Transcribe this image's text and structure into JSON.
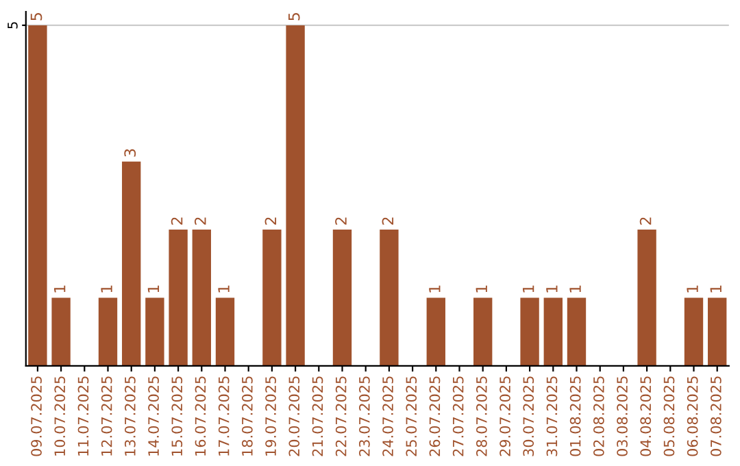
{
  "chart_data": {
    "type": "bar",
    "categories": [
      "09.07.2025",
      "10.07.2025",
      "11.07.2025",
      "12.07.2025",
      "13.07.2025",
      "14.07.2025",
      "15.07.2025",
      "16.07.2025",
      "17.07.2025",
      "18.07.2025",
      "19.07.2025",
      "20.07.2025",
      "21.07.2025",
      "22.07.2025",
      "23.07.2025",
      "24.07.2025",
      "25.07.2025",
      "26.07.2025",
      "27.07.2025",
      "28.07.2025",
      "29.07.2025",
      "30.07.2025",
      "31.07.2025",
      "01.08.2025",
      "02.08.2025",
      "03.08.2025",
      "04.08.2025",
      "05.08.2025",
      "06.08.2025",
      "07.08.2025"
    ],
    "values": [
      5,
      1,
      0,
      1,
      3,
      1,
      2,
      2,
      1,
      0,
      2,
      5,
      0,
      2,
      0,
      2,
      0,
      1,
      0,
      1,
      0,
      1,
      1,
      1,
      0,
      0,
      2,
      0,
      1,
      1
    ],
    "value_labels": [
      "5",
      "1",
      null,
      "1",
      "3",
      "1",
      "2",
      "2",
      "1",
      null,
      "2",
      "5",
      null,
      "2",
      null,
      "2",
      null,
      "1",
      null,
      "1",
      null,
      "1",
      "1",
      "1",
      null,
      null,
      "2",
      null,
      "1",
      "1"
    ],
    "color": "#a0522d",
    "ylim": [
      0,
      5.2
    ],
    "yticks": [
      5
    ],
    "grid": "y",
    "legend": false
  }
}
